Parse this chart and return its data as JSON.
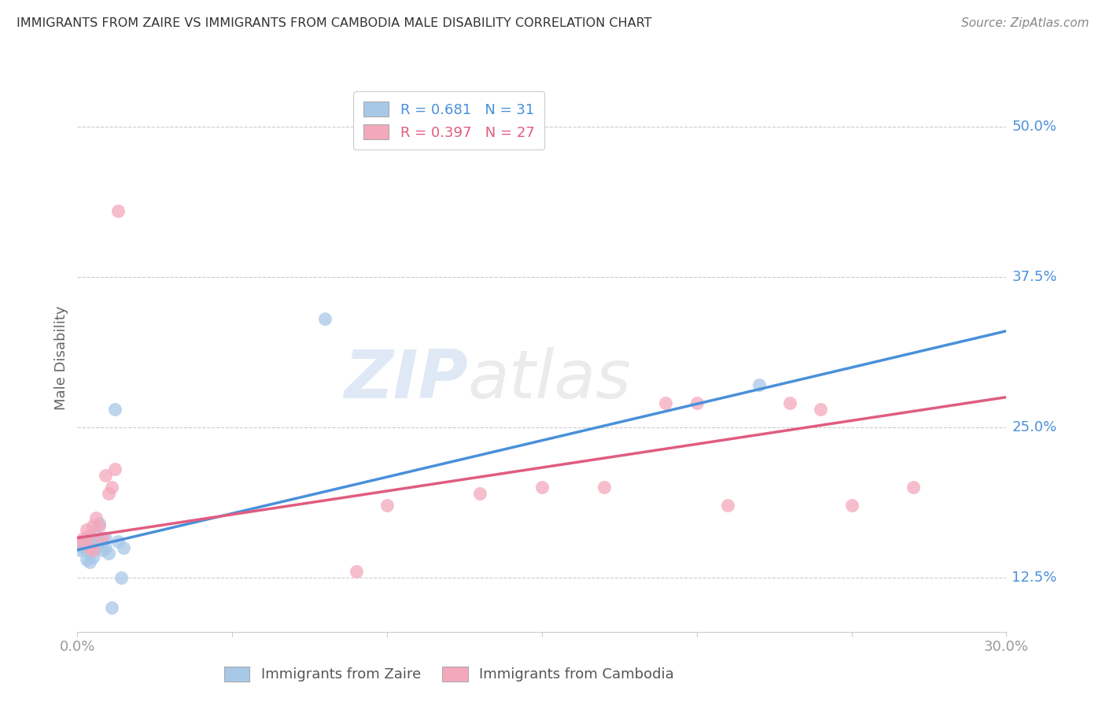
{
  "title": "IMMIGRANTS FROM ZAIRE VS IMMIGRANTS FROM CAMBODIA MALE DISABILITY CORRELATION CHART",
  "source": "Source: ZipAtlas.com",
  "ylabel": "Male Disability",
  "xlim": [
    0.0,
    0.3
  ],
  "ylim": [
    0.08,
    0.535
  ],
  "yticks": [
    0.125,
    0.25,
    0.375,
    0.5
  ],
  "ytick_labels": [
    "12.5%",
    "25.0%",
    "37.5%",
    "50.0%"
  ],
  "xticks": [
    0.0,
    0.05,
    0.1,
    0.15,
    0.2,
    0.25,
    0.3
  ],
  "xtick_labels": [
    "0.0%",
    "",
    "",
    "",
    "",
    "",
    "30.0%"
  ],
  "background_color": "#ffffff",
  "legend_label1": "Immigrants from Zaire",
  "legend_label2": "Immigrants from Cambodia",
  "blue_dot_color": "#a8c8e8",
  "pink_dot_color": "#f4a8bc",
  "line_blue": "#4a90d9",
  "line_pink": "#e05c80",
  "legend_text_blue": "#4a90d9",
  "legend_text_pink": "#e05c80",
  "zaire_x": [
    0.001,
    0.001,
    0.002,
    0.002,
    0.003,
    0.003,
    0.003,
    0.004,
    0.004,
    0.004,
    0.004,
    0.005,
    0.005,
    0.005,
    0.006,
    0.006,
    0.006,
    0.007,
    0.007,
    0.008,
    0.008,
    0.009,
    0.009,
    0.01,
    0.011,
    0.012,
    0.013,
    0.014,
    0.015,
    0.08,
    0.22
  ],
  "zaire_y": [
    0.155,
    0.148,
    0.15,
    0.155,
    0.14,
    0.148,
    0.158,
    0.15,
    0.145,
    0.158,
    0.138,
    0.155,
    0.148,
    0.142,
    0.16,
    0.155,
    0.15,
    0.17,
    0.155,
    0.155,
    0.148,
    0.158,
    0.15,
    0.145,
    0.1,
    0.265,
    0.155,
    0.125,
    0.15,
    0.34,
    0.285
  ],
  "cambodia_x": [
    0.001,
    0.002,
    0.003,
    0.004,
    0.004,
    0.005,
    0.005,
    0.006,
    0.007,
    0.008,
    0.009,
    0.01,
    0.011,
    0.012,
    0.013,
    0.09,
    0.13,
    0.17,
    0.19,
    0.2,
    0.21,
    0.23,
    0.24,
    0.1,
    0.15,
    0.25,
    0.27
  ],
  "cambodia_y": [
    0.155,
    0.158,
    0.165,
    0.16,
    0.15,
    0.168,
    0.148,
    0.175,
    0.168,
    0.158,
    0.21,
    0.195,
    0.2,
    0.215,
    0.43,
    0.13,
    0.195,
    0.2,
    0.27,
    0.27,
    0.185,
    0.27,
    0.265,
    0.185,
    0.2,
    0.185,
    0.2
  ],
  "blue_line_x": [
    0.0,
    0.3
  ],
  "blue_line_y": [
    0.148,
    0.33
  ],
  "pink_line_x": [
    0.0,
    0.3
  ],
  "pink_line_y": [
    0.158,
    0.275
  ]
}
